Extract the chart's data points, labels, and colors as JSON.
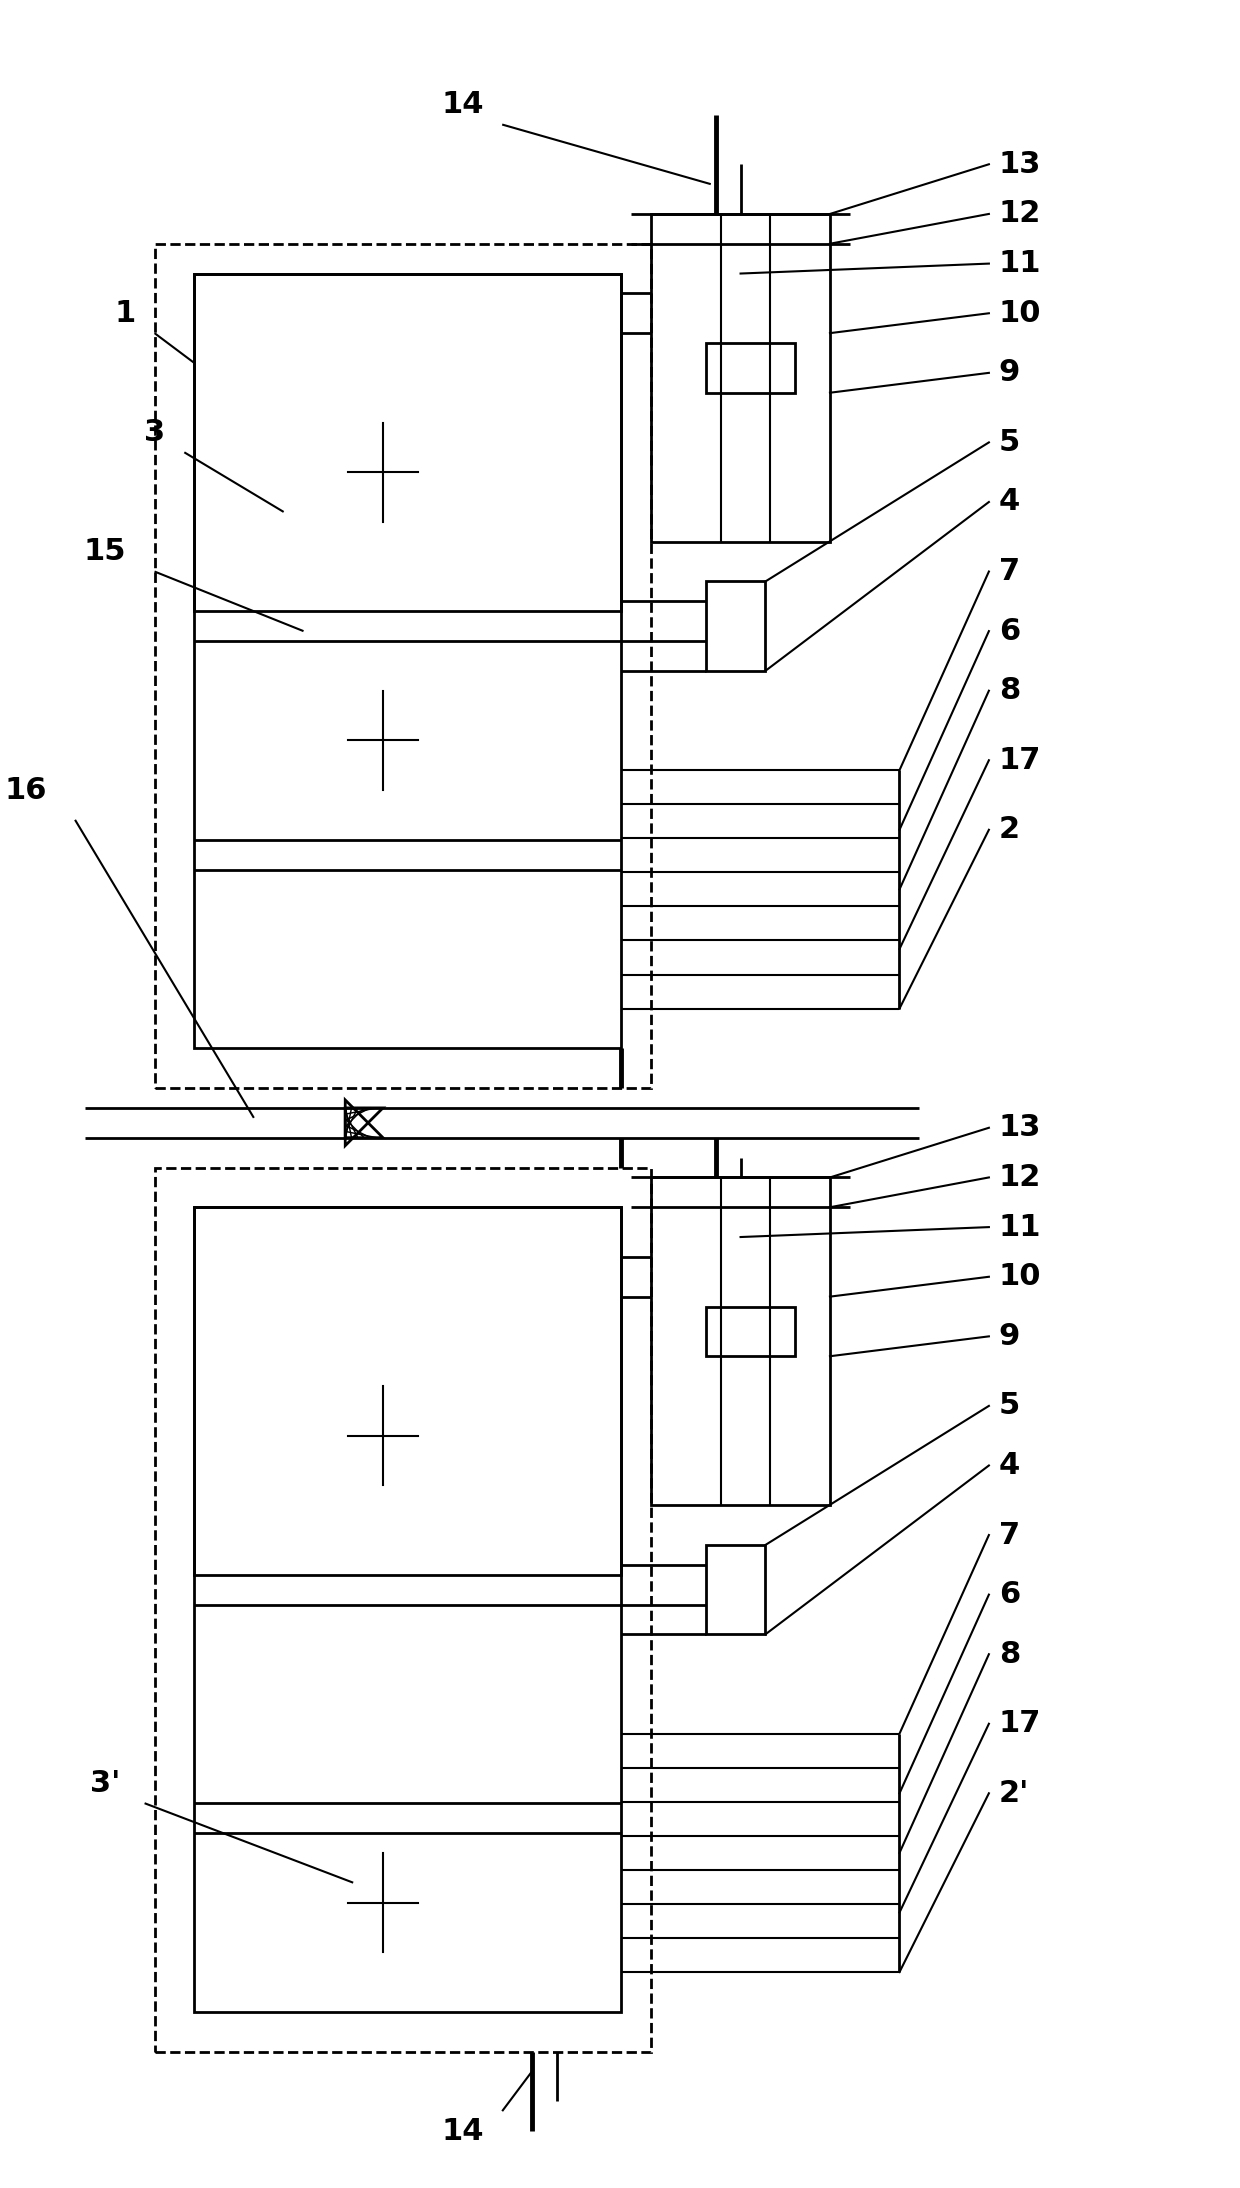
{
  "bg_color": "#ffffff",
  "line_color": "#000000",
  "lw": 2.0,
  "lw_thick": 3.5,
  "lw_thin": 1.5,
  "label_fontsize": 22,
  "fig_width": 12.4,
  "fig_height": 21.88,
  "dpi": 100
}
